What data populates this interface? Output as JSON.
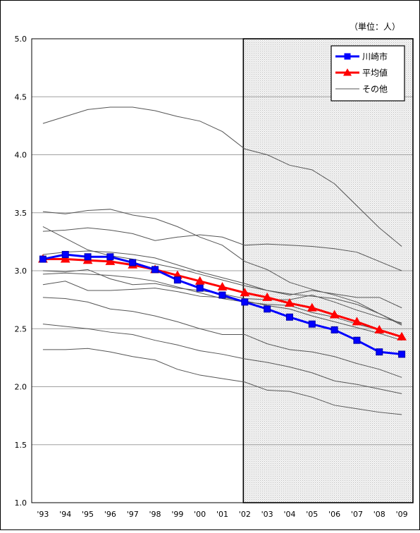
{
  "chart_data": {
    "type": "line",
    "unit_note": "（単位：人）",
    "x": [
      "'93",
      "'94",
      "'95",
      "'96",
      "'97",
      "'98",
      "'99",
      "'00",
      "'01",
      "'02",
      "'03",
      "'04",
      "'05",
      "'06",
      "'07",
      "'08",
      "'09"
    ],
    "ylim": [
      1.0,
      5.0
    ],
    "yticks": [
      "1.0",
      "1.5",
      "2.0",
      "2.5",
      "3.0",
      "3.5",
      "4.0",
      "4.5",
      "5.0"
    ],
    "grid": true,
    "legend_position": "top-right",
    "shaded_region": {
      "from": "'02",
      "to": "'09"
    },
    "series": [
      {
        "name": "川崎市",
        "color": "#0000ff",
        "marker": "square",
        "values": [
          3.1,
          3.14,
          3.12,
          3.12,
          3.07,
          3.01,
          2.92,
          2.85,
          2.79,
          2.73,
          2.67,
          2.6,
          2.54,
          2.49,
          2.4,
          2.3,
          2.28
        ]
      },
      {
        "name": "平均値",
        "color": "#ff0000",
        "marker": "triangle",
        "values": [
          3.1,
          3.1,
          3.09,
          3.08,
          3.05,
          3.01,
          2.96,
          2.91,
          2.86,
          2.81,
          2.77,
          2.72,
          2.68,
          2.62,
          2.56,
          2.49,
          2.43
        ]
      },
      {
        "name": "その他",
        "color": "#555555",
        "marker": "none",
        "lines": [
          [
            4.27,
            4.33,
            4.39,
            4.41,
            4.41,
            4.38,
            4.33,
            4.29,
            4.2,
            4.05,
            4.0,
            3.91,
            3.87,
            3.75,
            3.56,
            3.37,
            3.21
          ],
          [
            3.51,
            3.49,
            3.52,
            3.53,
            3.48,
            3.45,
            3.38,
            3.29,
            3.22,
            3.08,
            3.01,
            2.9,
            2.84,
            2.79,
            2.73,
            2.63,
            2.53
          ],
          [
            3.34,
            3.35,
            3.37,
            3.35,
            3.32,
            3.26,
            3.29,
            3.31,
            3.29,
            3.22,
            3.23,
            3.22,
            3.21,
            3.19,
            3.16,
            3.08,
            3.0
          ],
          [
            3.38,
            3.28,
            3.18,
            3.13,
            3.1,
            3.06,
            3.02,
            2.97,
            2.92,
            2.87,
            2.83,
            2.79,
            2.83,
            2.8,
            2.77,
            2.77,
            2.68
          ],
          [
            3.14,
            3.16,
            3.17,
            3.16,
            3.14,
            3.11,
            3.05,
            2.99,
            2.94,
            2.89,
            2.83,
            2.8,
            2.78,
            2.76,
            2.71,
            2.63,
            2.54
          ],
          [
            3.0,
            2.99,
            3.01,
            2.93,
            2.88,
            2.89,
            2.85,
            2.83,
            2.8,
            2.76,
            2.75,
            2.75,
            2.79,
            2.73,
            2.66,
            2.6,
            2.55
          ],
          [
            2.97,
            2.98,
            2.97,
            2.96,
            2.94,
            2.91,
            2.86,
            2.81,
            2.76,
            2.73,
            2.71,
            2.7,
            2.64,
            2.6,
            2.54,
            2.49,
            2.43
          ],
          [
            2.88,
            2.91,
            2.83,
            2.83,
            2.84,
            2.85,
            2.82,
            2.78,
            2.77,
            2.74,
            2.7,
            2.67,
            2.61,
            2.56,
            2.51,
            2.46,
            2.4
          ],
          [
            2.77,
            2.76,
            2.73,
            2.67,
            2.65,
            2.61,
            2.56,
            2.5,
            2.45,
            2.45,
            2.37,
            2.32,
            2.3,
            2.26,
            2.2,
            2.15,
            2.08
          ],
          [
            2.54,
            2.52,
            2.5,
            2.47,
            2.45,
            2.4,
            2.36,
            2.31,
            2.28,
            2.24,
            2.21,
            2.17,
            2.12,
            2.05,
            2.02,
            1.98,
            1.94
          ],
          [
            2.32,
            2.32,
            2.33,
            2.3,
            2.26,
            2.23,
            2.15,
            2.1,
            2.07,
            2.04,
            1.97,
            1.96,
            1.91,
            1.84,
            1.81,
            1.78,
            1.76
          ]
        ]
      }
    ]
  }
}
